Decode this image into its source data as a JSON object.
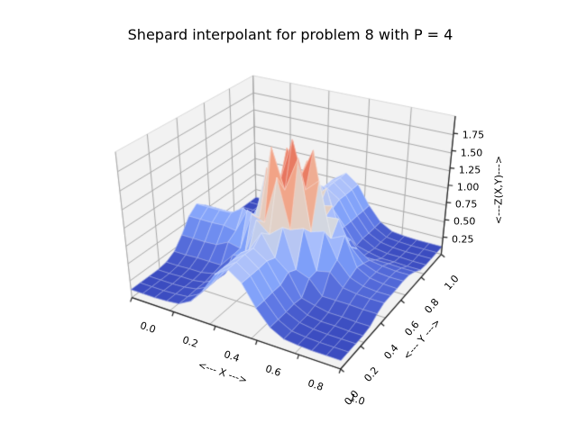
{
  "title": "Shepard interpolant for problem 8 with P = 4",
  "figure": {
    "background": "#ffffff",
    "pane_color": "#f2f2f2",
    "pane_edge_color": "#d9d9d9",
    "grid_color": "#a8a8a8",
    "spine_color": "#1c1c1c",
    "mesh_edge_color": "rgba(255,255,255,0.5)",
    "text_color": "#000000"
  },
  "chart_data": {
    "type": "surface3d",
    "title": "Shepard interpolant for problem 8 with P = 4",
    "xlabel": "<--- X --->",
    "ylabel": "<--- Y --->",
    "zlabel": "<---Z(X,Y)--->",
    "colormap": "coolwarm",
    "colormap_stops": [
      [
        0.0,
        "#3b4cc0"
      ],
      [
        0.125,
        "#5d76e3"
      ],
      [
        0.25,
        "#7c9ef9"
      ],
      [
        0.375,
        "#aabffc"
      ],
      [
        0.5,
        "#dcdcda"
      ],
      [
        0.625,
        "#ebbda6"
      ],
      [
        0.75,
        "#f49a7b"
      ],
      [
        0.875,
        "#dc5848"
      ],
      [
        1.0,
        "#b40426"
      ]
    ],
    "view": {
      "elev": 30,
      "azim": -60,
      "dist": 4,
      "z_box_aspect": 0.75
    },
    "grid": true,
    "x_range": [
      0,
      1
    ],
    "y_range": [
      0,
      1
    ],
    "z_range": [
      0,
      2
    ],
    "x_ticks": [
      "0.0",
      "0.2",
      "0.4",
      "0.6",
      "0.8",
      "1.0"
    ],
    "y_ticks": [
      "0.0",
      "0.2",
      "0.4",
      "0.6",
      "0.8",
      "1.0"
    ],
    "z_ticks": [
      "0.25",
      "0.50",
      "0.75",
      "1.00",
      "1.25",
      "1.50",
      "1.75"
    ],
    "color_range": [
      0.12,
      1.92
    ],
    "x": [
      0,
      0.0625,
      0.125,
      0.1875,
      0.25,
      0.3125,
      0.375,
      0.4375,
      0.5,
      0.5625,
      0.625,
      0.6875,
      0.75,
      0.8125,
      0.875,
      0.9375,
      1.0
    ],
    "y": [
      0,
      0.0625,
      0.125,
      0.1875,
      0.25,
      0.3125,
      0.375,
      0.4375,
      0.5,
      0.5625,
      0.625,
      0.6875,
      0.75,
      0.8125,
      0.875,
      0.9375,
      1.0
    ],
    "z": [
      [
        0.12,
        0.12,
        0.12,
        0.13,
        0.15,
        0.25,
        0.46,
        0.74,
        0.87,
        0.74,
        0.46,
        0.25,
        0.15,
        0.13,
        0.12,
        0.12,
        0.12
      ],
      [
        0.12,
        0.12,
        0.12,
        0.13,
        0.15,
        0.25,
        0.46,
        0.74,
        0.87,
        0.74,
        0.46,
        0.25,
        0.15,
        0.13,
        0.12,
        0.12,
        0.12
      ],
      [
        0.12,
        0.12,
        0.12,
        0.13,
        0.16,
        0.25,
        0.47,
        0.74,
        0.88,
        0.74,
        0.47,
        0.25,
        0.16,
        0.13,
        0.12,
        0.12,
        0.12
      ],
      [
        0.12,
        0.12,
        0.13,
        0.13,
        0.16,
        0.26,
        0.47,
        0.75,
        0.87,
        0.75,
        0.47,
        0.26,
        0.16,
        0.13,
        0.13,
        0.12,
        0.12
      ],
      [
        0.14,
        0.14,
        0.15,
        0.15,
        0.19,
        0.24,
        0.55,
        0.7,
        0.99,
        0.7,
        0.55,
        0.24,
        0.19,
        0.15,
        0.15,
        0.14,
        0.14
      ],
      [
        0.21,
        0.21,
        0.22,
        0.22,
        0.22,
        0.42,
        0.49,
        1.03,
        0.88,
        1.03,
        0.49,
        0.42,
        0.22,
        0.22,
        0.22,
        0.21,
        0.21
      ],
      [
        0.37,
        0.37,
        0.37,
        0.38,
        0.47,
        0.43,
        0.98,
        0.91,
        1.57,
        0.91,
        0.98,
        0.43,
        0.47,
        0.3,
        0.27,
        0.26,
        0.26
      ],
      [
        0.57,
        0.57,
        0.57,
        0.58,
        0.55,
        0.9,
        0.84,
        1.85,
        1.32,
        1.79,
        0.84,
        0.9,
        0.55,
        0.35,
        0.28,
        0.26,
        0.26
      ],
      [
        0.67,
        0.67,
        0.67,
        0.68,
        0.8,
        0.71,
        1.46,
        1.29,
        1.92,
        1.29,
        1.46,
        0.71,
        0.8,
        0.4,
        0.3,
        0.27,
        0.26
      ],
      [
        0.57,
        0.57,
        0.57,
        0.58,
        0.55,
        0.9,
        0.8,
        1.7,
        1.32,
        1.75,
        0.88,
        0.9,
        0.55,
        0.36,
        0.29,
        0.27,
        0.27
      ],
      [
        0.37,
        0.37,
        0.37,
        0.38,
        0.52,
        0.43,
        0.98,
        0.91,
        1.5,
        0.91,
        0.95,
        0.43,
        0.43,
        0.31,
        0.28,
        0.26,
        0.26
      ],
      [
        0.21,
        0.21,
        0.22,
        0.22,
        0.22,
        0.42,
        0.49,
        0.95,
        0.88,
        1.08,
        0.49,
        0.42,
        0.22,
        0.22,
        0.22,
        0.21,
        0.21
      ],
      [
        0.14,
        0.14,
        0.15,
        0.15,
        0.19,
        0.24,
        0.62,
        0.7,
        0.99,
        0.7,
        0.48,
        0.24,
        0.19,
        0.15,
        0.15,
        0.14,
        0.14
      ],
      [
        0.12,
        0.12,
        0.13,
        0.13,
        0.16,
        0.26,
        0.47,
        0.75,
        0.87,
        0.75,
        0.47,
        0.26,
        0.16,
        0.13,
        0.13,
        0.12,
        0.12
      ],
      [
        0.12,
        0.12,
        0.12,
        0.13,
        0.16,
        0.25,
        0.47,
        0.74,
        0.88,
        0.74,
        0.47,
        0.25,
        0.16,
        0.13,
        0.12,
        0.12,
        0.12
      ],
      [
        0.12,
        0.12,
        0.12,
        0.13,
        0.15,
        0.25,
        0.46,
        0.74,
        0.87,
        0.74,
        0.46,
        0.25,
        0.15,
        0.13,
        0.12,
        0.12,
        0.12
      ],
      [
        0.12,
        0.12,
        0.12,
        0.13,
        0.15,
        0.25,
        0.46,
        0.74,
        0.87,
        0.74,
        0.46,
        0.25,
        0.15,
        0.13,
        0.12,
        0.12,
        0.12
      ]
    ]
  }
}
